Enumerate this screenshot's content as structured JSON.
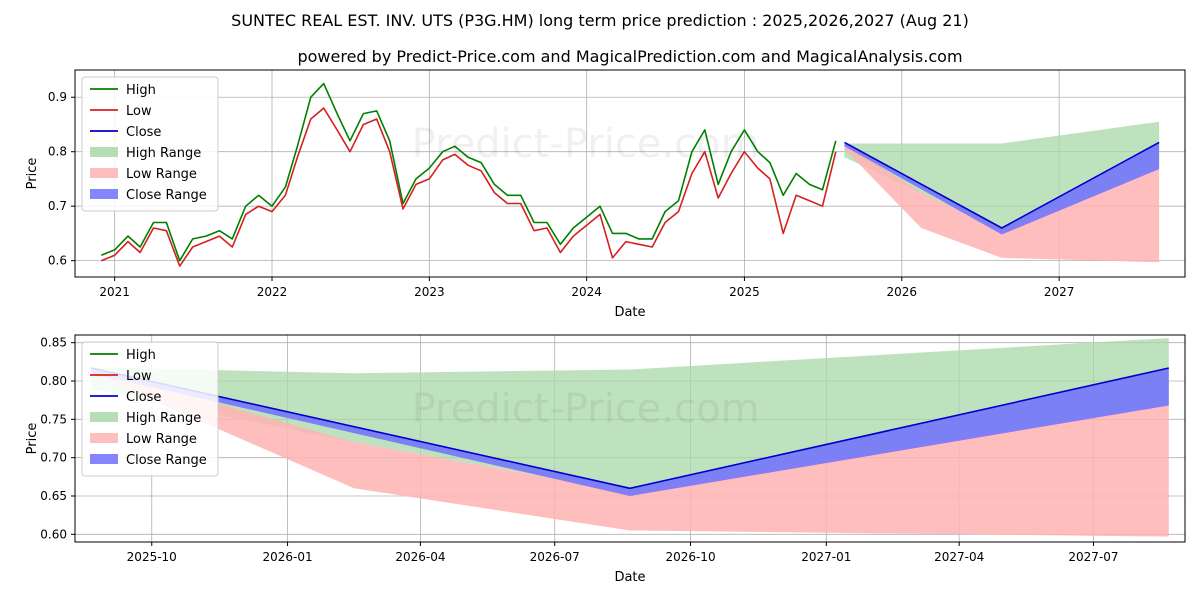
{
  "title": "SUNTEC REAL EST. INV. UTS (P3G.HM) long term price prediction : 2025,2026,2027 (Aug 21)",
  "subtitle": "powered by Predict-Price.com and MagicalPrediction.com and MagicalAnalysis.com",
  "watermark": "Predict-Price.com",
  "colors": {
    "high": "#008000",
    "low": "#d62020",
    "close": "#0000cc",
    "high_range": "#a8d8a8",
    "low_range": "#ffb3b3",
    "close_range": "#7070ff",
    "grid": "#b0b0b0"
  },
  "legend": {
    "items": [
      {
        "label": "High",
        "kind": "line",
        "color_key": "high"
      },
      {
        "label": "Low",
        "kind": "line",
        "color_key": "low"
      },
      {
        "label": "Close",
        "kind": "line",
        "color_key": "close"
      },
      {
        "label": "High Range",
        "kind": "patch",
        "color_key": "high_range"
      },
      {
        "label": "Low Range",
        "kind": "patch",
        "color_key": "low_range"
      },
      {
        "label": "Close Range",
        "kind": "patch",
        "color_key": "close_range"
      }
    ]
  },
  "chart_data": [
    {
      "type": "line",
      "xlabel": "Date",
      "ylabel": "Price",
      "xlim": [
        "2020-10-01",
        "2027-10-20"
      ],
      "ylim": [
        0.57,
        0.95
      ],
      "x_ticks": [
        {
          "date": "2021-01-01",
          "label": "2021"
        },
        {
          "date": "2022-01-01",
          "label": "2022"
        },
        {
          "date": "2023-01-01",
          "label": "2023"
        },
        {
          "date": "2024-01-01",
          "label": "2024"
        },
        {
          "date": "2025-01-01",
          "label": "2025"
        },
        {
          "date": "2026-01-01",
          "label": "2026"
        },
        {
          "date": "2027-01-01",
          "label": "2027"
        }
      ],
      "y_ticks": [
        0.6,
        0.7,
        0.8,
        0.9
      ],
      "y_tick_labels": [
        "0.6",
        "0.7",
        "0.8",
        "0.9"
      ],
      "grid": true,
      "legend": "top-left",
      "series": [
        {
          "name": "High",
          "x": [
            "2020-12-01",
            "2021-01-01",
            "2021-02-01",
            "2021-03-01",
            "2021-04-01",
            "2021-05-01",
            "2021-06-01",
            "2021-07-01",
            "2021-08-01",
            "2021-09-01",
            "2021-10-01",
            "2021-11-01",
            "2021-12-01",
            "2022-01-01",
            "2022-02-01",
            "2022-03-01",
            "2022-04-01",
            "2022-05-01",
            "2022-06-01",
            "2022-07-01",
            "2022-08-01",
            "2022-09-01",
            "2022-10-01",
            "2022-11-01",
            "2022-12-01",
            "2023-01-01",
            "2023-02-01",
            "2023-03-01",
            "2023-04-01",
            "2023-05-01",
            "2023-06-01",
            "2023-07-01",
            "2023-08-01",
            "2023-09-01",
            "2023-10-01",
            "2023-11-01",
            "2023-12-01",
            "2024-01-01",
            "2024-02-01",
            "2024-03-01",
            "2024-04-01",
            "2024-05-01",
            "2024-06-01",
            "2024-07-01",
            "2024-08-01",
            "2024-09-01",
            "2024-10-01",
            "2024-11-01",
            "2024-12-01",
            "2025-01-01",
            "2025-02-01",
            "2025-03-01",
            "2025-04-01",
            "2025-05-01",
            "2025-06-01",
            "2025-07-01",
            "2025-08-01"
          ],
          "values": [
            0.61,
            0.62,
            0.645,
            0.625,
            0.67,
            0.67,
            0.6,
            0.64,
            0.645,
            0.655,
            0.64,
            0.7,
            0.72,
            0.7,
            0.735,
            0.81,
            0.9,
            0.925,
            0.87,
            0.82,
            0.87,
            0.875,
            0.82,
            0.705,
            0.75,
            0.77,
            0.8,
            0.81,
            0.79,
            0.78,
            0.74,
            0.72,
            0.72,
            0.67,
            0.67,
            0.63,
            0.66,
            0.68,
            0.7,
            0.65,
            0.65,
            0.64,
            0.64,
            0.69,
            0.71,
            0.8,
            0.84,
            0.74,
            0.8,
            0.84,
            0.8,
            0.78,
            0.72,
            0.76,
            0.74,
            0.73,
            0.82
          ]
        },
        {
          "name": "Low",
          "x": [
            "2020-12-01",
            "2021-01-01",
            "2021-02-01",
            "2021-03-01",
            "2021-04-01",
            "2021-05-01",
            "2021-06-01",
            "2021-07-01",
            "2021-08-01",
            "2021-09-01",
            "2021-10-01",
            "2021-11-01",
            "2021-12-01",
            "2022-01-01",
            "2022-02-01",
            "2022-03-01",
            "2022-04-01",
            "2022-05-01",
            "2022-06-01",
            "2022-07-01",
            "2022-08-01",
            "2022-09-01",
            "2022-10-01",
            "2022-11-01",
            "2022-12-01",
            "2023-01-01",
            "2023-02-01",
            "2023-03-01",
            "2023-04-01",
            "2023-05-01",
            "2023-06-01",
            "2023-07-01",
            "2023-08-01",
            "2023-09-01",
            "2023-10-01",
            "2023-11-01",
            "2023-12-01",
            "2024-01-01",
            "2024-02-01",
            "2024-03-01",
            "2024-04-01",
            "2024-05-01",
            "2024-06-01",
            "2024-07-01",
            "2024-08-01",
            "2024-09-01",
            "2024-10-01",
            "2024-11-01",
            "2024-12-01",
            "2025-01-01",
            "2025-02-01",
            "2025-03-01",
            "2025-04-01",
            "2025-05-01",
            "2025-06-01",
            "2025-07-01",
            "2025-08-01"
          ],
          "values": [
            0.6,
            0.61,
            0.635,
            0.615,
            0.66,
            0.655,
            0.59,
            0.625,
            0.635,
            0.645,
            0.625,
            0.685,
            0.7,
            0.69,
            0.72,
            0.79,
            0.86,
            0.88,
            0.84,
            0.8,
            0.85,
            0.86,
            0.8,
            0.695,
            0.74,
            0.75,
            0.785,
            0.795,
            0.775,
            0.765,
            0.725,
            0.705,
            0.705,
            0.655,
            0.66,
            0.615,
            0.645,
            0.665,
            0.685,
            0.605,
            0.635,
            0.63,
            0.625,
            0.67,
            0.69,
            0.76,
            0.8,
            0.715,
            0.76,
            0.8,
            0.77,
            0.75,
            0.65,
            0.72,
            0.71,
            0.7,
            0.8
          ]
        },
        {
          "name": "High Range",
          "x": [
            "2025-08-21",
            "2026-08-21",
            "2027-08-21"
          ],
          "upper": [
            0.815,
            0.815,
            0.855
          ],
          "lower": [
            0.79,
            0.655,
            0.77
          ]
        },
        {
          "name": "Low Range",
          "x": [
            "2025-08-21",
            "2026-02-15",
            "2026-08-21",
            "2027-08-21"
          ],
          "upper": [
            0.815,
            0.725,
            0.655,
            0.77
          ],
          "lower": [
            0.805,
            0.66,
            0.605,
            0.597
          ]
        },
        {
          "name": "Close Range",
          "x": [
            "2025-08-21",
            "2026-08-21",
            "2027-08-21"
          ],
          "upper": [
            0.817,
            0.66,
            0.817
          ],
          "lower": [
            0.81,
            0.648,
            0.768
          ]
        },
        {
          "name": "Close",
          "x": [
            "2025-08-21",
            "2026-08-21",
            "2027-08-21"
          ],
          "values": [
            0.817,
            0.66,
            0.817
          ]
        }
      ]
    },
    {
      "type": "line",
      "xlabel": "Date",
      "ylabel": "Price",
      "xlim": [
        "2025-08-10",
        "2027-09-01"
      ],
      "ylim": [
        0.59,
        0.86
      ],
      "x_ticks": [
        {
          "date": "2025-10-01",
          "label": "2025-10"
        },
        {
          "date": "2026-01-01",
          "label": "2026-01"
        },
        {
          "date": "2026-04-01",
          "label": "2026-04"
        },
        {
          "date": "2026-07-01",
          "label": "2026-07"
        },
        {
          "date": "2026-10-01",
          "label": "2026-10"
        },
        {
          "date": "2027-01-01",
          "label": "2027-01"
        },
        {
          "date": "2027-04-01",
          "label": "2027-04"
        },
        {
          "date": "2027-07-01",
          "label": "2027-07"
        }
      ],
      "y_ticks": [
        0.6,
        0.65,
        0.7,
        0.75,
        0.8,
        0.85
      ],
      "y_tick_labels": [
        "0.60",
        "0.65",
        "0.70",
        "0.75",
        "0.80",
        "0.85"
      ],
      "grid": true,
      "legend": "top-left",
      "series": [
        {
          "name": "High Range",
          "x": [
            "2025-08-21",
            "2026-02-15",
            "2026-08-21",
            "2027-08-21"
          ],
          "upper": [
            0.818,
            0.81,
            0.815,
            0.856
          ],
          "lower": [
            0.79,
            0.72,
            0.655,
            0.77
          ]
        },
        {
          "name": "Low Range",
          "x": [
            "2025-08-21",
            "2026-02-15",
            "2026-08-21",
            "2027-08-21"
          ],
          "upper": [
            0.818,
            0.72,
            0.655,
            0.77
          ],
          "lower": [
            0.81,
            0.66,
            0.605,
            0.597
          ]
        },
        {
          "name": "Close Range",
          "x": [
            "2025-08-21",
            "2026-08-21",
            "2027-08-21"
          ],
          "upper": [
            0.818,
            0.66,
            0.817
          ],
          "lower": [
            0.81,
            0.65,
            0.768
          ]
        },
        {
          "name": "Close",
          "x": [
            "2025-08-21",
            "2026-08-21",
            "2027-08-21"
          ],
          "values": [
            0.817,
            0.66,
            0.817
          ]
        }
      ]
    }
  ]
}
